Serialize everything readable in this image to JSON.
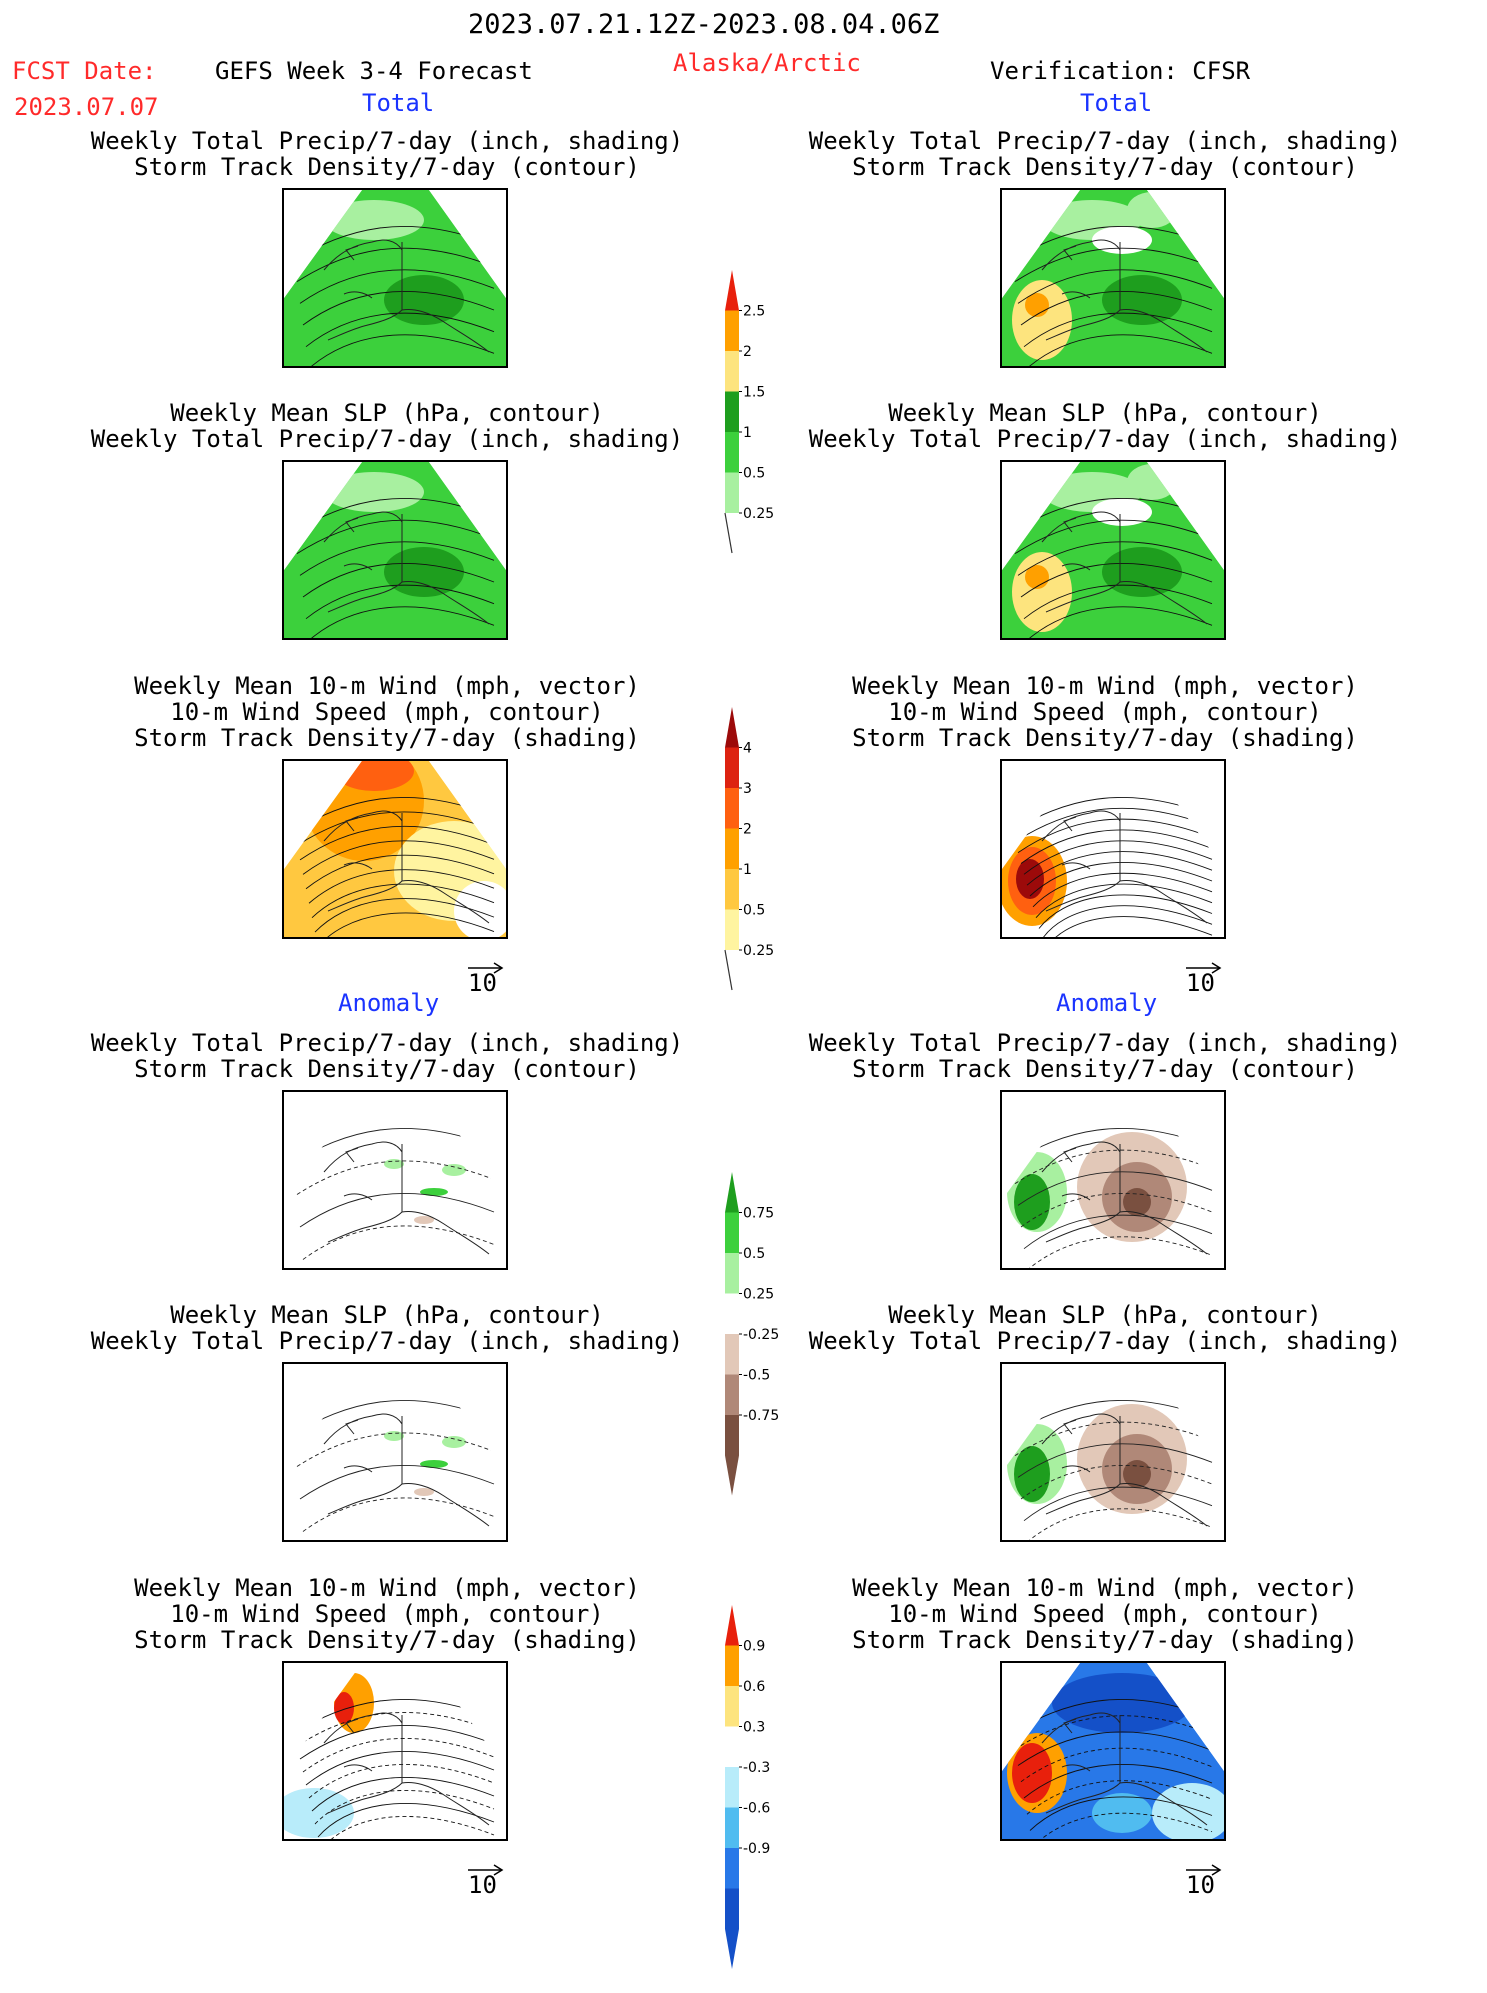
{
  "header": {
    "date_range": "2023.07.21.12Z-2023.08.04.06Z",
    "fcst_label": "FCST Date:",
    "fcst_date": "2023.07.07",
    "model": "GEFS Week 3-4 Forecast",
    "region": "Alaska/Arctic",
    "verification": "Verification: CFSR"
  },
  "sections": {
    "total": "Total",
    "anomaly": "Anomaly"
  },
  "titles": {
    "precip_track_1": "Weekly Total Precip/7-day (inch, shading)",
    "precip_track_2": "Storm Track Density/7-day (contour)",
    "slp_precip_1": "Weekly Mean SLP (hPa, contour)",
    "slp_precip_2": "Weekly Total Precip/7-day (inch, shading)",
    "wind_1": "Weekly Mean 10-m Wind (mph, vector)",
    "wind_2": "10-m Wind Speed (mph, contour)",
    "wind_3": "Storm Track Density/7-day (shading)"
  },
  "vector_reference": "10",
  "colorbars": {
    "precip_total": {
      "labels": [
        "2.5",
        "2",
        "1.5",
        "1",
        "0.5",
        "0.25"
      ],
      "colors": [
        "#e8200c",
        "#ffa000",
        "#fde47e",
        "#1e9e1e",
        "#3cd03c",
        "#a8f0a0"
      ]
    },
    "track_total": {
      "labels": [
        "4",
        "3",
        "2",
        "1",
        "0.5",
        "0.25"
      ],
      "colors": [
        "#9c0a0a",
        "#dd2211",
        "#ff6010",
        "#ffa000",
        "#ffc840",
        "#fff4a0"
      ]
    },
    "precip_anom": {
      "labels": [
        "0.75",
        "0.5",
        "0.25",
        "-0.25",
        "-0.5",
        "-0.75"
      ],
      "colors": [
        "#1e9e1e",
        "#3cd03c",
        "#a8f0a0",
        "#ffffff",
        "#e2c8b8",
        "#b08878",
        "#7a5040"
      ]
    },
    "track_anom": {
      "labels": [
        "0.9",
        "0.6",
        "0.3",
        "-0.3",
        "-0.6",
        "-0.9"
      ],
      "colors": [
        "#e8200c",
        "#ffa000",
        "#fde47e",
        "#ffffff",
        "#b8ecfa",
        "#50bcf0",
        "#2878e8",
        "#1450c8"
      ]
    }
  }
}
